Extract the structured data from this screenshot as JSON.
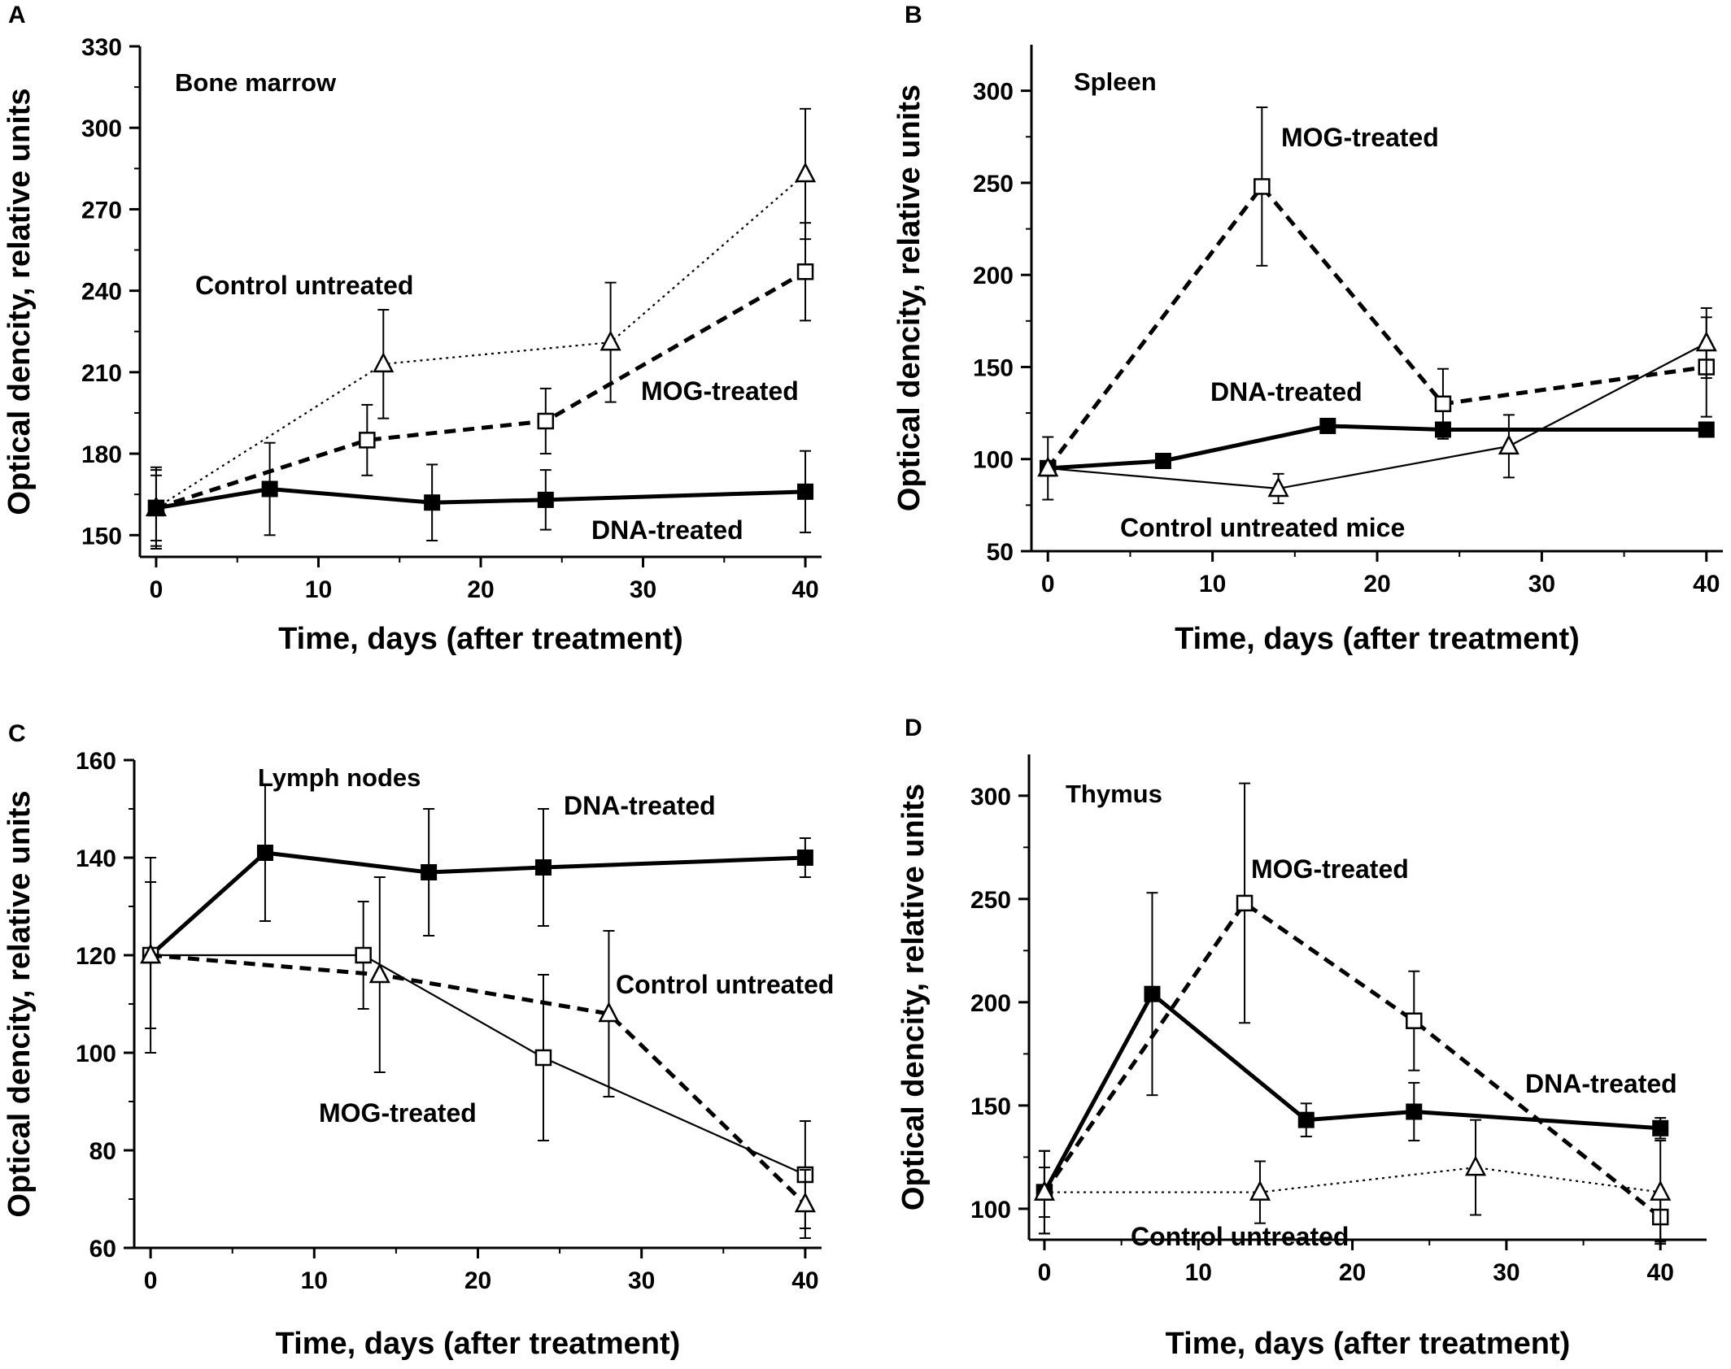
{
  "chart_data": [
    {
      "type": "line",
      "panel_letter": "A",
      "title": "Bone marrow",
      "xlabel": "Time, days (after treatment)",
      "ylabel": "Optical dencity, relative units",
      "xlim": [
        -1,
        41
      ],
      "ylim": [
        142,
        330
      ],
      "xticks": [
        0,
        10,
        20,
        30,
        40
      ],
      "yticks": [
        150,
        180,
        210,
        240,
        270,
        300,
        330
      ],
      "series": [
        {
          "name": "Control untreated",
          "style": "dotted-thin",
          "marker": "triangle-open",
          "x": [
            0,
            14,
            28,
            40
          ],
          "y": [
            160,
            213,
            221,
            283
          ],
          "err": [
            15,
            20,
            22,
            24
          ]
        },
        {
          "name": "MOG-treated",
          "style": "dashed-bold",
          "marker": "square-open",
          "x": [
            0,
            13,
            24,
            40
          ],
          "y": [
            160,
            185,
            192,
            247
          ],
          "err": [
            12,
            13,
            12,
            18
          ]
        },
        {
          "name": "DNA-treated",
          "style": "solid-bold",
          "marker": "square-filled",
          "x": [
            0,
            7,
            17,
            24,
            40
          ],
          "y": [
            160,
            167,
            162,
            163,
            166
          ],
          "err": [
            14,
            17,
            14,
            11,
            15
          ]
        }
      ],
      "annotations": [
        "Control untreated",
        "MOG-treated",
        "DNA-treated"
      ]
    },
    {
      "type": "line",
      "panel_letter": "B",
      "title": "Spleen",
      "xlabel": "Time, days (after treatment)",
      "ylabel": "Optical dencity, relative units",
      "xlim": [
        -1,
        41
      ],
      "ylim": [
        50,
        325
      ],
      "xticks": [
        0,
        10,
        20,
        30,
        40
      ],
      "yticks": [
        50,
        100,
        150,
        200,
        250,
        300
      ],
      "series": [
        {
          "name": "MOG-treated",
          "style": "dashed-bold",
          "marker": "square-open",
          "x": [
            0,
            13,
            24,
            40
          ],
          "y": [
            95,
            248,
            130,
            150
          ],
          "err": [
            17,
            43,
            19,
            27
          ]
        },
        {
          "name": "DNA-treated",
          "style": "solid-bold",
          "marker": "square-filled",
          "x": [
            0,
            7,
            17,
            24,
            40
          ],
          "y": [
            95,
            99,
            118,
            116,
            116
          ],
          "err": [
            0,
            0,
            0,
            0,
            0
          ]
        },
        {
          "name": "Control untreated mice",
          "style": "solid-thin",
          "marker": "triangle-open",
          "x": [
            0,
            14,
            28,
            40
          ],
          "y": [
            95,
            84,
            107,
            163
          ],
          "err": [
            0,
            8,
            17,
            19
          ]
        }
      ],
      "annotations": [
        "MOG-treated",
        "DNA-treated",
        "Control untreated mice"
      ]
    },
    {
      "type": "line",
      "panel_letter": "C",
      "title": "Lymph nodes",
      "xlabel": "Time, days (after treatment)",
      "ylabel": "Optical dencity, relative units",
      "xlim": [
        -1,
        41
      ],
      "ylim": [
        60,
        160
      ],
      "xticks": [
        0,
        10,
        20,
        30,
        40
      ],
      "yticks": [
        60,
        80,
        100,
        120,
        140,
        160
      ],
      "series": [
        {
          "name": "DNA-treated",
          "style": "solid-bold",
          "marker": "square-filled",
          "x": [
            0,
            7,
            17,
            24,
            40
          ],
          "y": [
            120,
            141,
            137,
            138,
            140
          ],
          "err": [
            15,
            14,
            13,
            12,
            4
          ]
        },
        {
          "name": "MOG-treated",
          "style": "solid-thin",
          "marker": "square-open",
          "x": [
            0,
            13,
            24,
            40
          ],
          "y": [
            120,
            120,
            99,
            75
          ],
          "err": [
            20,
            11,
            17,
            11
          ]
        },
        {
          "name": "Control untreated",
          "style": "dashed-bold",
          "marker": "triangle-open",
          "x": [
            0,
            14,
            28,
            40
          ],
          "y": [
            120,
            116,
            108,
            69
          ],
          "err": [
            0,
            20,
            17,
            7
          ]
        }
      ],
      "annotations": [
        "DNA-treated",
        "Control untreated",
        "MOG-treated"
      ]
    },
    {
      "type": "line",
      "panel_letter": "D",
      "title": "Thymus",
      "xlabel": "Time, days (after treatment)",
      "ylabel": "Optical dencity, relative units",
      "xlim": [
        -1,
        43
      ],
      "ylim": [
        85,
        320
      ],
      "xticks": [
        0,
        10,
        20,
        30,
        40
      ],
      "yticks": [
        100,
        150,
        200,
        250,
        300
      ],
      "series": [
        {
          "name": "MOG-treated",
          "style": "dashed-bold",
          "marker": "square-open",
          "x": [
            0,
            13,
            24,
            40
          ],
          "y": [
            108,
            248,
            191,
            96
          ],
          "err": [
            20,
            58,
            24,
            12
          ]
        },
        {
          "name": "DNA-treated",
          "style": "solid-bold",
          "marker": "square-filled",
          "x": [
            0,
            7,
            17,
            24,
            40
          ],
          "y": [
            108,
            204,
            143,
            147,
            139
          ],
          "err": [
            20,
            49,
            8,
            14,
            5
          ]
        },
        {
          "name": "Control untreated",
          "style": "dotted-thin",
          "marker": "triangle-open",
          "x": [
            0,
            14,
            28,
            40
          ],
          "y": [
            108,
            108,
            120,
            108
          ],
          "err": [
            12,
            15,
            23,
            25
          ]
        }
      ],
      "annotations": [
        "MOG-treated",
        "DNA-treated",
        "Control untreated"
      ]
    }
  ]
}
